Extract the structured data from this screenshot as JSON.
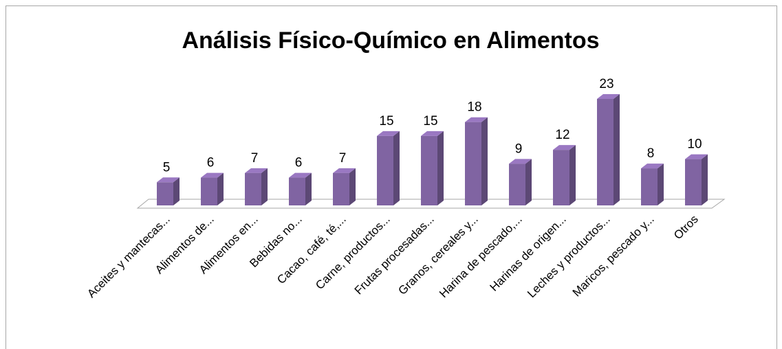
{
  "chart_data": {
    "type": "bar3d",
    "title": "Análisis Físico-Químico en Alimentos",
    "categories": [
      "Aceites y mantecas...",
      "Alimentos de...",
      "Alimentos en...",
      "Bebidas no...",
      "Cacao, café, té,...",
      "Carne, productos...",
      "Frutas procesadas...",
      "Granos, cereales y...",
      "Harina de pescado,...",
      "Harinas de origen...",
      "Leches y productos...",
      "Maricos, pescado y...",
      "Otros"
    ],
    "values": [
      5,
      6,
      7,
      6,
      7,
      15,
      15,
      18,
      9,
      12,
      23,
      8,
      10
    ],
    "color": "#8064a2"
  }
}
